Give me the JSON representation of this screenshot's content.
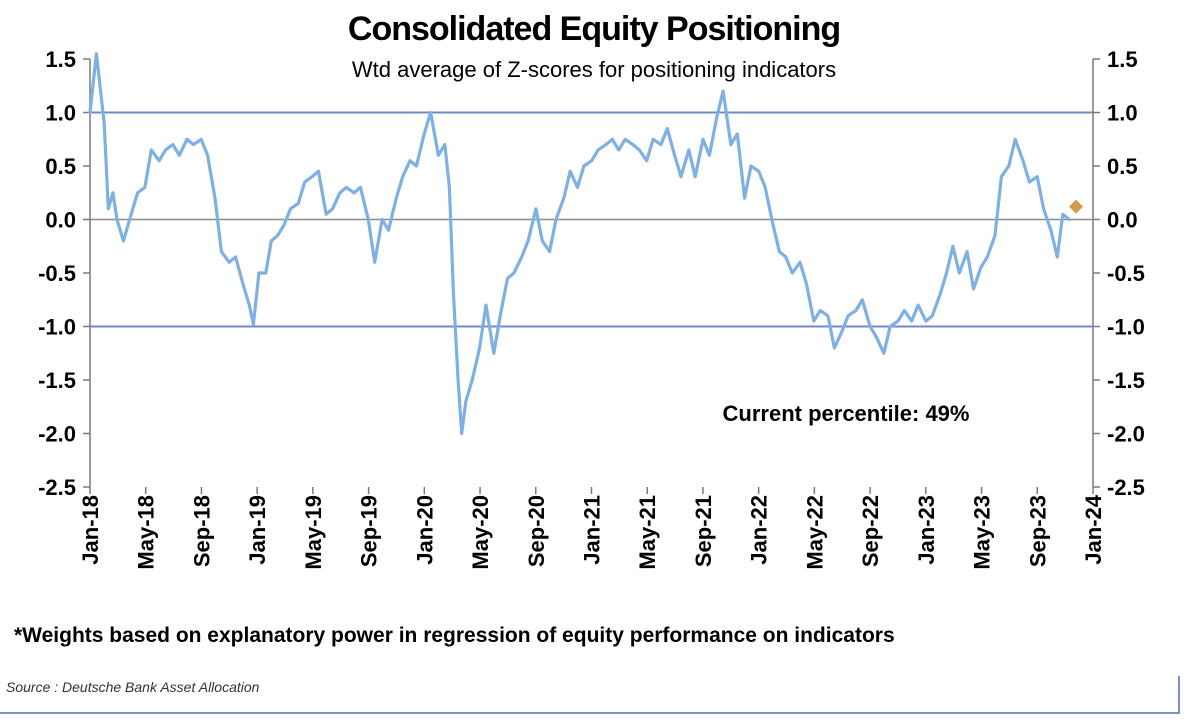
{
  "chart_data": {
    "type": "line",
    "title": "Consolidated Equity Positioning",
    "subtitle": "Wtd average of Z-scores for positioning indicators",
    "xlabel": "",
    "ylabel": "",
    "ylim": [
      -2.5,
      1.5
    ],
    "y_ticks": [
      "1.5",
      "1.0",
      "0.5",
      "0.0",
      "-0.5",
      "-1.0",
      "-1.5",
      "-2.0",
      "-2.5"
    ],
    "x_ticks": [
      "Jan-18",
      "May-18",
      "Sep-18",
      "Jan-19",
      "May-19",
      "Sep-19",
      "Jan-20",
      "May-20",
      "Sep-20",
      "Jan-21",
      "May-21",
      "Sep-21",
      "Jan-22",
      "May-22",
      "Sep-22",
      "Jan-23",
      "May-23",
      "Sep-23",
      "Jan-24"
    ],
    "grid": false,
    "reference_lines": [
      1.0,
      -1.0
    ],
    "series": [
      {
        "color": "#7eb0e3",
        "x": [
          "2018-01-01",
          "2018-01-15",
          "2018-02-01",
          "2018-02-10",
          "2018-02-20",
          "2018-03-01",
          "2018-03-15",
          "2018-04-01",
          "2018-04-15",
          "2018-05-01",
          "2018-05-15",
          "2018-06-01",
          "2018-06-15",
          "2018-07-01",
          "2018-07-15",
          "2018-08-01",
          "2018-08-15",
          "2018-09-01",
          "2018-09-15",
          "2018-10-01",
          "2018-10-15",
          "2018-11-01",
          "2018-11-15",
          "2018-12-01",
          "2018-12-15",
          "2018-12-24",
          "2019-01-05",
          "2019-01-20",
          "2019-02-01",
          "2019-02-15",
          "2019-03-01",
          "2019-03-15",
          "2019-04-01",
          "2019-04-15",
          "2019-05-01",
          "2019-05-15",
          "2019-06-01",
          "2019-06-15",
          "2019-07-01",
          "2019-07-15",
          "2019-08-01",
          "2019-08-15",
          "2019-09-01",
          "2019-09-15",
          "2019-10-01",
          "2019-10-15",
          "2019-11-01",
          "2019-11-15",
          "2019-12-01",
          "2019-12-15",
          "2020-01-01",
          "2020-01-15",
          "2020-02-01",
          "2020-02-15",
          "2020-02-25",
          "2020-03-05",
          "2020-03-15",
          "2020-03-23",
          "2020-04-01",
          "2020-04-15",
          "2020-05-01",
          "2020-05-15",
          "2020-06-01",
          "2020-06-15",
          "2020-07-01",
          "2020-07-15",
          "2020-08-01",
          "2020-08-15",
          "2020-09-01",
          "2020-09-15",
          "2020-10-01",
          "2020-10-15",
          "2020-11-01",
          "2020-11-15",
          "2020-12-01",
          "2020-12-15",
          "2021-01-01",
          "2021-01-15",
          "2021-02-01",
          "2021-02-15",
          "2021-03-01",
          "2021-03-15",
          "2021-04-01",
          "2021-04-15",
          "2021-05-01",
          "2021-05-15",
          "2021-06-01",
          "2021-06-15",
          "2021-07-01",
          "2021-07-15",
          "2021-08-01",
          "2021-08-15",
          "2021-09-01",
          "2021-09-15",
          "2021-10-01",
          "2021-10-15",
          "2021-11-01",
          "2021-11-15",
          "2021-12-01",
          "2021-12-15",
          "2022-01-01",
          "2022-01-15",
          "2022-02-01",
          "2022-02-15",
          "2022-03-01",
          "2022-03-15",
          "2022-04-01",
          "2022-04-15",
          "2022-05-01",
          "2022-05-15",
          "2022-06-01",
          "2022-06-15",
          "2022-07-01",
          "2022-07-15",
          "2022-08-01",
          "2022-08-15",
          "2022-09-01",
          "2022-09-15",
          "2022-10-01",
          "2022-10-15",
          "2022-11-01",
          "2022-11-15",
          "2022-12-01",
          "2022-12-15",
          "2023-01-01",
          "2023-01-15",
          "2023-02-01",
          "2023-02-15",
          "2023-03-01",
          "2023-03-15",
          "2023-04-01",
          "2023-04-15",
          "2023-05-01",
          "2023-05-15",
          "2023-06-01",
          "2023-06-15",
          "2023-07-01",
          "2023-07-15",
          "2023-08-01",
          "2023-08-15",
          "2023-09-01",
          "2023-09-15",
          "2023-10-01",
          "2023-10-15",
          "2023-10-27",
          "2023-11-10"
        ],
        "y": [
          1.0,
          1.55,
          0.9,
          0.1,
          0.25,
          0.0,
          -0.2,
          0.05,
          0.25,
          0.3,
          0.65,
          0.55,
          0.65,
          0.7,
          0.6,
          0.75,
          0.7,
          0.75,
          0.6,
          0.2,
          -0.3,
          -0.4,
          -0.35,
          -0.6,
          -0.8,
          -0.98,
          -0.5,
          -0.5,
          -0.2,
          -0.15,
          -0.05,
          0.1,
          0.15,
          0.35,
          0.4,
          0.45,
          0.05,
          0.1,
          0.25,
          0.3,
          0.25,
          0.3,
          0.0,
          -0.4,
          0.0,
          -0.1,
          0.2,
          0.4,
          0.55,
          0.5,
          0.8,
          1.0,
          0.6,
          0.7,
          0.3,
          -0.7,
          -1.5,
          -2.0,
          -1.7,
          -1.5,
          -1.2,
          -0.8,
          -1.25,
          -0.9,
          -0.55,
          -0.5,
          -0.35,
          -0.2,
          0.1,
          -0.2,
          -0.3,
          0.0,
          0.2,
          0.45,
          0.3,
          0.5,
          0.55,
          0.65,
          0.7,
          0.75,
          0.65,
          0.75,
          0.7,
          0.65,
          0.55,
          0.75,
          0.7,
          0.85,
          0.6,
          0.4,
          0.65,
          0.4,
          0.75,
          0.6,
          0.95,
          1.2,
          0.7,
          0.8,
          0.2,
          0.5,
          0.45,
          0.3,
          -0.05,
          -0.3,
          -0.35,
          -0.5,
          -0.4,
          -0.6,
          -0.95,
          -0.85,
          -0.9,
          -1.2,
          -1.05,
          -0.9,
          -0.85,
          -0.75,
          -1.0,
          -1.1,
          -1.25,
          -1.0,
          -0.95,
          -0.85,
          -0.95,
          -0.8,
          -0.95,
          -0.9,
          -0.7,
          -0.5,
          -0.25,
          -0.5,
          -0.3,
          -0.65,
          -0.45,
          -0.35,
          -0.15,
          0.4,
          0.5,
          0.75,
          0.55,
          0.35,
          0.4,
          0.1,
          -0.1,
          -0.35,
          0.05,
          0.0
        ]
      }
    ],
    "current_point": {
      "x": "2023-11-25",
      "y": 0.12,
      "color": "#d39a4f"
    },
    "annotation": "Current percentile: 49%",
    "footnote": "*Weights based on explanatory power in regression of equity performance on indicators",
    "source": "Source : Deutsche Bank Asset Allocation",
    "colors": {
      "axis": "#7a7a7a",
      "reference_line": "#7289c4",
      "zero_line": "#8a8a8a"
    }
  }
}
